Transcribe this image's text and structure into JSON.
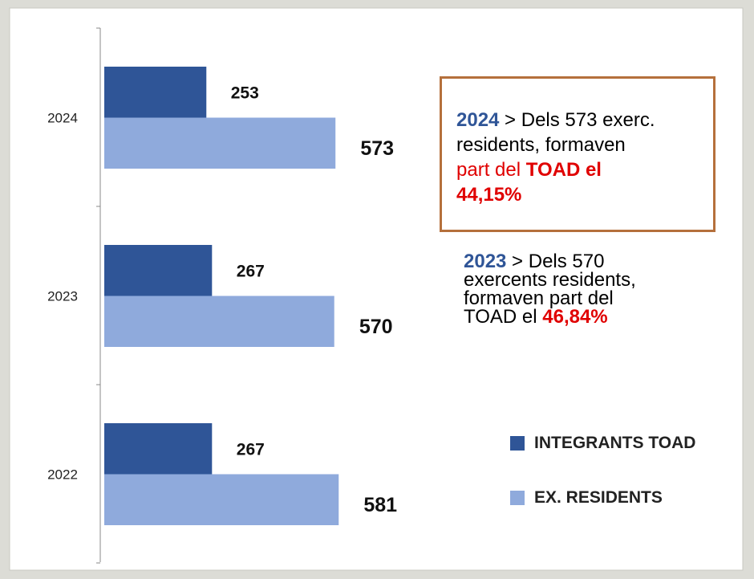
{
  "chart_data": {
    "type": "bar",
    "orientation": "horizontal",
    "categories": [
      "2024",
      "2023",
      "2022"
    ],
    "series": [
      {
        "name": "INTEGRANTS TOAD",
        "color": "#2f5597",
        "values": [
          253,
          267,
          267
        ]
      },
      {
        "name": "EX. RESIDENTS",
        "color": "#8faadc",
        "values": [
          573,
          570,
          581
        ]
      }
    ],
    "annotations": [
      [
        "2024",
        " > Dels 573 exerc.",
        "residents, formaven",
        "part del ",
        "TOAD el",
        "44,15%"
      ],
      [
        "2023",
        " > Dels 570",
        "exercents residents,",
        "formaven part del",
        "TOAD el ",
        "46,84%"
      ]
    ]
  }
}
